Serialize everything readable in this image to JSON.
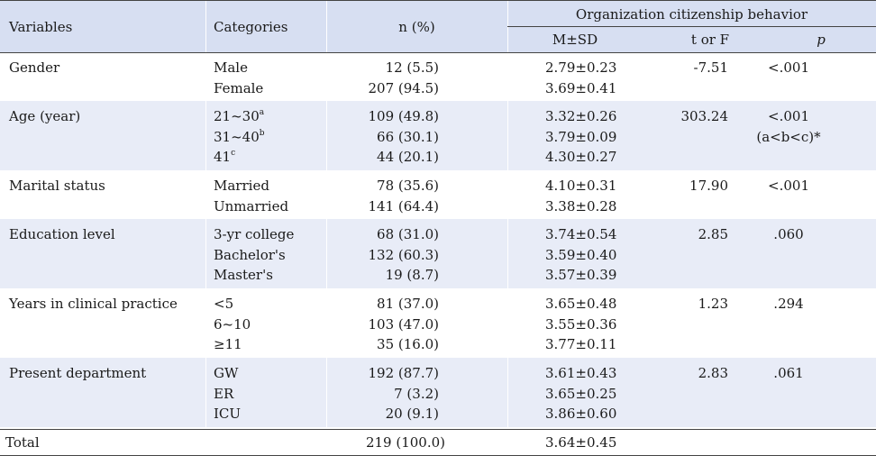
{
  "header": {
    "variables": "Variables",
    "categories": "Categories",
    "n_pct": "n (%)",
    "group_title": "Organization citizenship behavior",
    "msd": "M±SD",
    "t_or_f": "t or F",
    "p": "p"
  },
  "groups": [
    {
      "variable": "Gender",
      "categories": [
        {
          "label": "Male",
          "sup": ""
        },
        {
          "label": "Female",
          "sup": ""
        }
      ],
      "n": [
        "12 (5.5)",
        "207 (94.5)"
      ],
      "msd": [
        "2.79±0.23",
        "3.69±0.41"
      ],
      "t": "-7.51",
      "p": [
        "<.001"
      ]
    },
    {
      "variable": "Age (year)",
      "categories": [
        {
          "label": "21~30",
          "sup": "a"
        },
        {
          "label": "31~40",
          "sup": "b"
        },
        {
          "label": "41",
          "sup": "c"
        }
      ],
      "n": [
        "109 (49.8)",
        "66 (30.1)",
        "44 (20.1)"
      ],
      "msd": [
        "3.32±0.26",
        "3.79±0.09",
        "4.30±0.27"
      ],
      "t": "303.24",
      "p": [
        "<.001",
        "(a<b<c)*"
      ]
    },
    {
      "variable": "Marital status",
      "categories": [
        {
          "label": "Married",
          "sup": ""
        },
        {
          "label": "Unmarried",
          "sup": ""
        }
      ],
      "n": [
        "78 (35.6)",
        "141 (64.4)"
      ],
      "msd": [
        "4.10±0.31",
        "3.38±0.28"
      ],
      "t": "17.90",
      "p": [
        "<.001"
      ]
    },
    {
      "variable": "Education level",
      "categories": [
        {
          "label": "3-yr college",
          "sup": ""
        },
        {
          "label": "Bachelor's",
          "sup": ""
        },
        {
          "label": "Master's",
          "sup": ""
        }
      ],
      "n": [
        "68 (31.0)",
        "132 (60.3)",
        "19 (8.7)"
      ],
      "msd": [
        "3.74±0.54",
        "3.59±0.40",
        "3.57±0.39"
      ],
      "t": "2.85",
      "p": [
        ".060"
      ]
    },
    {
      "variable": "Years in clinical practice",
      "categories": [
        {
          "label": "<5",
          "sup": ""
        },
        {
          "label": "6~10",
          "sup": ""
        },
        {
          "label": "≥11",
          "sup": ""
        }
      ],
      "n": [
        "81 (37.0)",
        "103 (47.0)",
        "35 (16.0)"
      ],
      "msd": [
        "3.65±0.48",
        "3.55±0.36",
        "3.77±0.11"
      ],
      "t": "1.23",
      "p": [
        ".294"
      ]
    },
    {
      "variable": "Present department",
      "categories": [
        {
          "label": "GW",
          "sup": ""
        },
        {
          "label": "ER",
          "sup": ""
        },
        {
          "label": "ICU",
          "sup": ""
        }
      ],
      "n": [
        "192 (87.7)",
        "7 (3.2)",
        "20 (9.1)"
      ],
      "msd": [
        "3.61±0.43",
        "3.65±0.25",
        "3.86±0.60"
      ],
      "t": "2.83",
      "p": [
        ".061"
      ]
    }
  ],
  "total": {
    "label": "Total",
    "n": "219 (100.0)",
    "msd": "3.64±0.45"
  }
}
